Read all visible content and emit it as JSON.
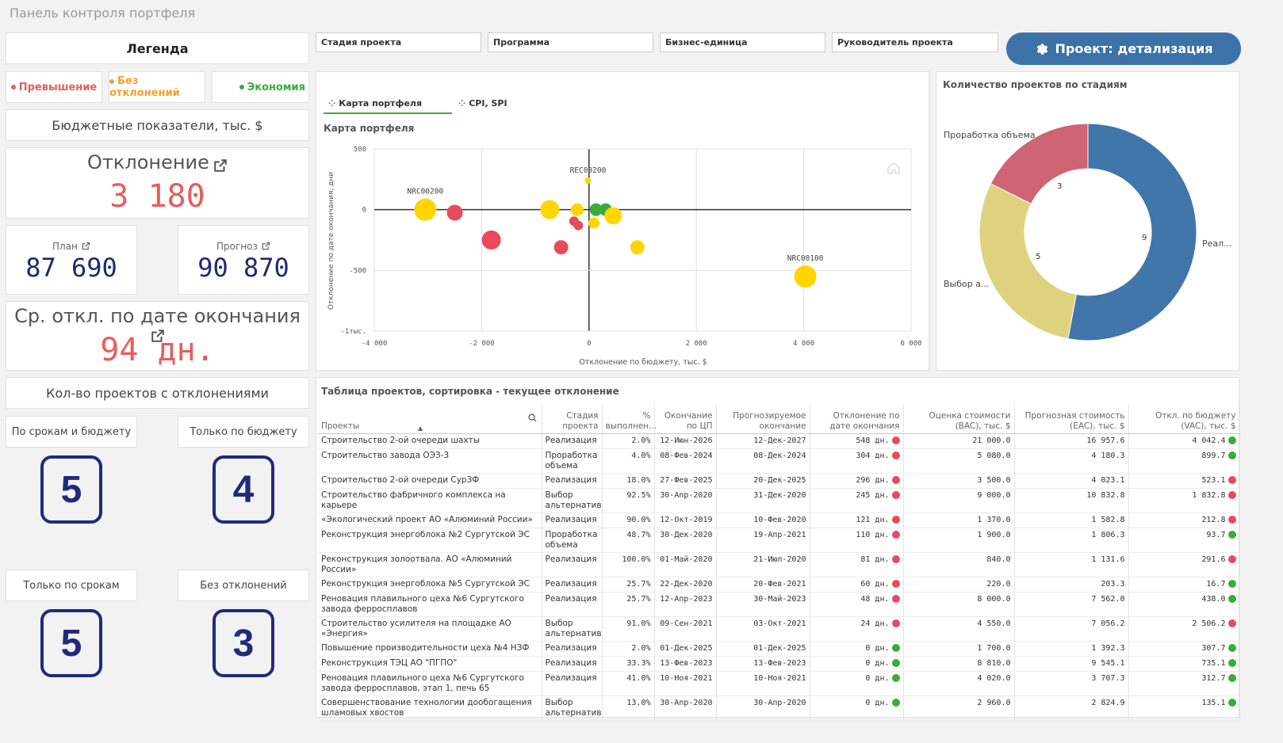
{
  "app_title": "Панель контроля портфеля",
  "legend": {
    "title": "Легенда",
    "items": [
      {
        "label": "Превышение",
        "color": "#e75d5d"
      },
      {
        "label": "Без отклонений",
        "color": "#f0a030"
      },
      {
        "label": "Экономия",
        "color": "#3aab3a"
      }
    ]
  },
  "budget": {
    "title": "Бюджетные показатели, тыс. $",
    "deviation_label": "Отклонение",
    "deviation_value": "3 180",
    "plan_label": "План",
    "plan_value": "87 690",
    "forecast_label": "Прогноз",
    "forecast_value": "90 870",
    "avg_delay_label": "Ср. откл. по дате окончания",
    "avg_delay_value": "94 дн."
  },
  "counts": {
    "title": "Кол-во проектов с отклонениями",
    "items": [
      {
        "label": "По срокам и бюджету",
        "value": "5"
      },
      {
        "label": "Только по бюджету",
        "value": "4"
      },
      {
        "label": "Только по срокам",
        "value": "5"
      },
      {
        "label": "Без отклонений",
        "value": "3"
      }
    ]
  },
  "filters": [
    "Стадия проекта",
    "Программа",
    "Бизнес-единица",
    "Руководитель проекта"
  ],
  "drill_button": "Проект: детализация",
  "tabs": [
    "Карта портфеля",
    "CPI, SPI"
  ],
  "scatter": {
    "title": "Карта портфеля",
    "xlabel": "Отклонение по бюджету, тыс. $",
    "ylabel": "Отклонение по дате окончания, дни",
    "xticks": [
      "-4 000",
      "-2 000",
      "0",
      "2 000",
      "4 000",
      "6 000"
    ],
    "yticks": [
      "500",
      "0",
      "-500",
      "-1тыс."
    ],
    "points_labels": [
      "NRC00200",
      "REC00200",
      "NRC00100"
    ]
  },
  "chart_data": [
    {
      "type": "scatter",
      "title": "Карта портфеля",
      "xlabel": "Отклонение по бюджету, тыс. $",
      "ylabel": "Отклонение по дате окончания, дни",
      "xlim": [
        -4000,
        6000
      ],
      "ylim": [
        -1000,
        500
      ],
      "points": [
        {
          "x": -3050,
          "y": 0,
          "r": 14,
          "color": "#ffd500",
          "label": "NRC00200"
        },
        {
          "x": -2500,
          "y": -25,
          "r": 10,
          "color": "#e84a5a"
        },
        {
          "x": -1820,
          "y": -250,
          "r": 12,
          "color": "#e84a5a"
        },
        {
          "x": -730,
          "y": 0,
          "r": 12,
          "color": "#ffd500"
        },
        {
          "x": -520,
          "y": -310,
          "r": 9,
          "color": "#e84a5a"
        },
        {
          "x": -280,
          "y": -95,
          "r": 6,
          "color": "#e84a5a"
        },
        {
          "x": -200,
          "y": -130,
          "r": 6,
          "color": "#e84a5a"
        },
        {
          "x": -220,
          "y": 0,
          "r": 8,
          "color": "#ffd500"
        },
        {
          "x": -20,
          "y": 240,
          "r": 4,
          "color": "#ffd500",
          "label": "REC00200"
        },
        {
          "x": 90,
          "y": -110,
          "r": 7,
          "color": "#ffd500"
        },
        {
          "x": 130,
          "y": 0,
          "r": 8,
          "color": "#3aab3a"
        },
        {
          "x": 310,
          "y": 0,
          "r": 8,
          "color": "#3aab3a"
        },
        {
          "x": 450,
          "y": -50,
          "r": 11,
          "color": "#ffd500"
        },
        {
          "x": 900,
          "y": -310,
          "r": 9,
          "color": "#ffd500"
        },
        {
          "x": 4030,
          "y": -550,
          "r": 14,
          "color": "#ffd500",
          "label": "NRC00100"
        }
      ]
    },
    {
      "type": "pie",
      "title": "Количество проектов по стадиям",
      "slices": [
        {
          "label": "Реал...",
          "value": 9,
          "color": "#4076aa"
        },
        {
          "label": "Выбор а...",
          "value": 5,
          "color": "#ded27e"
        },
        {
          "label": "Проработка объема",
          "value": 3,
          "color": "#ce6474"
        }
      ]
    }
  ],
  "table": {
    "title": "Таблица проектов, сортировка - текущее отклонение",
    "headers": [
      "Проекты",
      "Стадия проекта",
      "% выполнен...",
      "Окончание по ЦП",
      "Прогнозируемое окончание",
      "Отклонение по дате окончания",
      "Оценка стоимости (BAC), тыс. $",
      "Прогнозная стоимость (EAC), тыс. $",
      "Откл. по бюджету (VAC), тыс. $"
    ],
    "rows": [
      [
        "Строительство 2-ой очереди шахты",
        "Реализация",
        "2.0%",
        "12-Июн-2026",
        "12-Дек-2027",
        "548 дн.",
        "21 000.0",
        "16 957.6",
        "4 042.4"
      ],
      [
        "Строительство завода ОЭЗ-3",
        "Проработка объема",
        "4.0%",
        "08-Фев-2024",
        "08-Дек-2024",
        "304 дн.",
        "5 080.0",
        "4 180.3",
        "899.7"
      ],
      [
        "Строительство 2-ой очереди СурЗФ",
        "Реализация",
        "18.0%",
        "27-Фев-2025",
        "20-Дек-2025",
        "296 дн.",
        "3 500.0",
        "4 023.1",
        "523.1"
      ],
      [
        "Строительство фабричного комплекса на карьере",
        "Выбор альтернатив",
        "92.5%",
        "30-Апр-2020",
        "31-Дек-2020",
        "245 дн.",
        "9 000.0",
        "10 832.8",
        "1 832.8"
      ],
      [
        "«Экологический проект АО «Алюминий России»",
        "Реализация",
        "90.0%",
        "12-Окт-2019",
        "10-Фев-2020",
        "121 дн.",
        "1 370.0",
        "1 582.8",
        "212.8"
      ],
      [
        "Реконструкция энергоблока №2 Сургутской ЭС",
        "Проработка объема",
        "48.7%",
        "30-Дек-2020",
        "19-Апр-2021",
        "110 дн.",
        "1 900.0",
        "1 806.3",
        "93.7"
      ],
      [
        "Реконструкция золоотвала. АО «Алюминий России»",
        "Реализация",
        "100.0%",
        "01-Май-2020",
        "21-Июл-2020",
        "81 дн.",
        "840.0",
        "1 131.6",
        "291.6"
      ],
      [
        "Реконструкция энергоблока №5 Сургутской ЭС",
        "Реализация",
        "25.7%",
        "22-Дек-2020",
        "20-Фев-2021",
        "60 дн.",
        "220.0",
        "203.3",
        "16.7"
      ],
      [
        "Реновация плавильного цеха №6 Сургутского завода ферросплавов",
        "Реализация",
        "25.7%",
        "12-Апр-2023",
        "30-Май-2023",
        "48 дн.",
        "8 000.0",
        "7 562.0",
        "438.0"
      ],
      [
        "Строительство усилителя на площадке АО «Энергия»",
        "Выбор альтернатив",
        "91.0%",
        "09-Сен-2021",
        "03-Окт-2021",
        "24 дн.",
        "4 550.0",
        "7 056.2",
        "2 506.2"
      ],
      [
        "Повышение производительности цеха №4 НЗФ",
        "Реализация",
        "2.0%",
        "01-Дек-2025",
        "01-Дек-2025",
        "0 дн.",
        "1 700.0",
        "1 392.3",
        "307.7"
      ],
      [
        "Реконструкция ТЭЦ АО \"ПГПО\"",
        "Реализация",
        "33.3%",
        "13-Фев-2023",
        "13-Фев-2023",
        "0 дн.",
        "8 810.0",
        "9 545.1",
        "735.1"
      ],
      [
        "Реновация плавильного цеха №6 Сургутского завода ферросплавов, этап 1, печь 65",
        "Реализация",
        "41.0%",
        "10-Ноя-2021",
        "10-Ноя-2021",
        "0 дн.",
        "4 020.0",
        "3 707.3",
        "312.7"
      ],
      [
        "Совершенствование технологии дообогащения шламовых хвостов",
        "Выбор альтернатив",
        "13.0%",
        "30-Апр-2020",
        "30-Апр-2020",
        "0 дн.",
        "2 960.0",
        "2 824.9",
        "135.1"
      ]
    ],
    "date_status": [
      "red",
      "red",
      "red",
      "red",
      "red",
      "red",
      "red",
      "red",
      "red",
      "red",
      "green",
      "green",
      "green",
      "green"
    ],
    "budget_status": [
      "green",
      "green",
      "red",
      "red",
      "red",
      "green",
      "red",
      "green",
      "green",
      "red",
      "green",
      "green",
      "green",
      "green"
    ],
    "status_colors": {
      "red": "#e84a5a",
      "green": "#3aab3a"
    }
  }
}
